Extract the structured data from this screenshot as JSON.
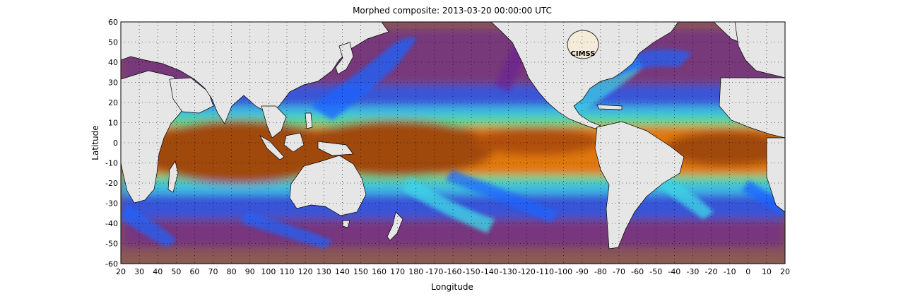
{
  "title": "Morphed composite: 2013-03-20 00:00:00 UTC",
  "xlabel": "Longitude",
  "ylabel": "Latitude",
  "logo_text": "CIMSS",
  "y_ticks": [
    "60",
    "50",
    "40",
    "30",
    "20",
    "10",
    "0",
    "-10",
    "-20",
    "-30",
    "-40",
    "-50",
    "-60"
  ],
  "x_ticks": [
    "20",
    "30",
    "40",
    "50",
    "60",
    "70",
    "80",
    "90",
    "100",
    "110",
    "120",
    "130",
    "140",
    "150",
    "160",
    "170",
    "180",
    "-170",
    "-160",
    "-150",
    "-140",
    "-130",
    "-120",
    "-110",
    "-100",
    "-90",
    "-80",
    "-70",
    "-60",
    "-50",
    "-40",
    "-30",
    "-20",
    "-10",
    "0",
    "10",
    "20"
  ],
  "colors": {
    "land": "#e6e6e6",
    "dry": "#8a5a55",
    "purple": "#6a1b9a",
    "blue": "#1e64ff",
    "cyan": "#3fd3e6",
    "green": "#5ee07a",
    "yellow": "#f0e060",
    "orange": "#e07810",
    "brown": "#a04808"
  }
}
